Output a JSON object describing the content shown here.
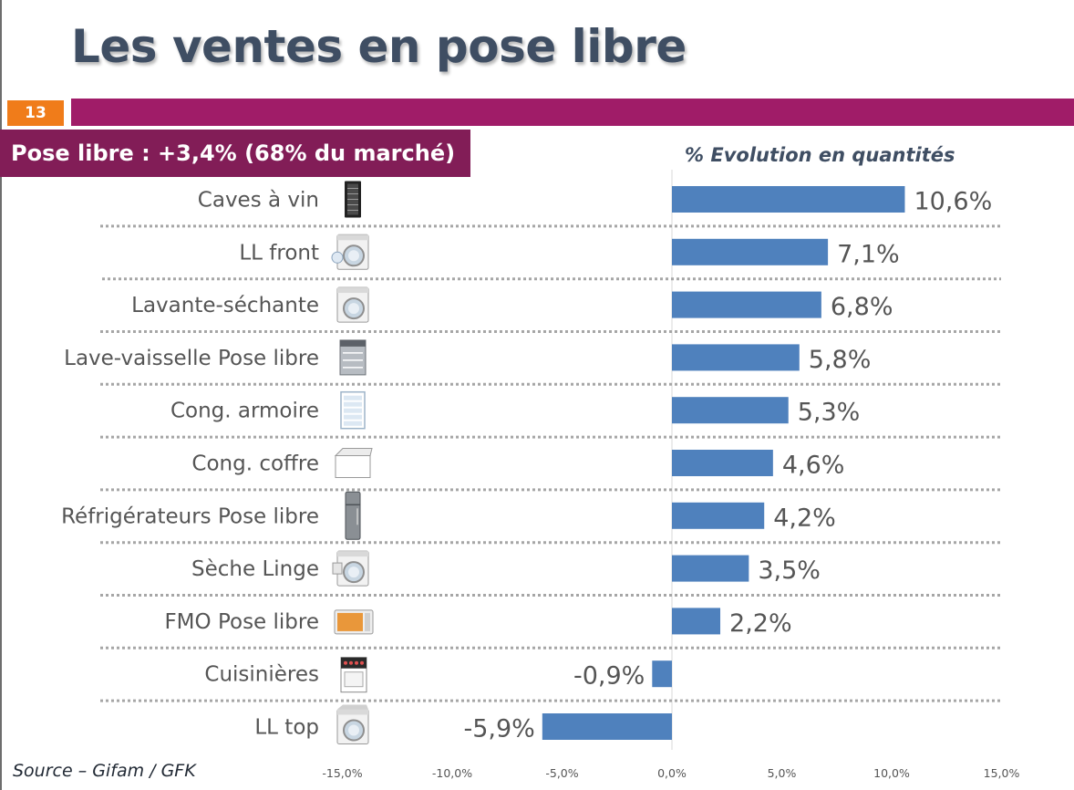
{
  "header": {
    "title": "Les ventes en pose libre",
    "slide_number": "13",
    "box_title": "Pose libre : +3,4% (68% du marché)",
    "subtitle": "% Evolution en quantités"
  },
  "footer": {
    "source": "Source – Gifam / GFK"
  },
  "colors": {
    "bar": "#4f81bd",
    "title_text": "#3f4e63",
    "band": "#a01c68",
    "box": "#821d57",
    "slide_number_bg": "#f07c1a"
  },
  "chart_data": {
    "type": "bar",
    "orientation": "horizontal",
    "categories": [
      "Caves à vin",
      "LL front",
      "Lavante-séchante",
      "Lave-vaisselle Pose libre",
      "Cong. armoire",
      "Cong. coffre",
      "Réfrigérateurs Pose libre",
      "Sèche Linge",
      "FMO Pose libre",
      "Cuisinières",
      "LL top"
    ],
    "category_icons": [
      "wine-cellar-icon",
      "front-loader-washer-icon",
      "washer-dryer-icon",
      "dishwasher-icon",
      "upright-freezer-icon",
      "chest-freezer-icon",
      "refrigerator-icon",
      "tumble-dryer-icon",
      "microwave-icon",
      "cooker-icon",
      "top-loader-washer-icon"
    ],
    "values": [
      10.6,
      7.1,
      6.8,
      5.8,
      5.3,
      4.6,
      4.2,
      3.5,
      2.2,
      -0.9,
      -5.9
    ],
    "value_labels": [
      "10,6%",
      "7,1%",
      "6,8%",
      "5,8%",
      "5,3%",
      "4,6%",
      "4,2%",
      "3,5%",
      "2,2%",
      "-0,9%",
      "-5,9%"
    ],
    "xlim": [
      -15,
      15
    ],
    "ticks": [
      -15,
      -10,
      -5,
      0,
      5,
      10,
      15
    ],
    "tick_labels": [
      "-15,0%",
      "-10,0%",
      "-5,0%",
      "0,0%",
      "5,0%",
      "10,0%",
      "15,0%"
    ],
    "grid": false,
    "legend": "none"
  }
}
